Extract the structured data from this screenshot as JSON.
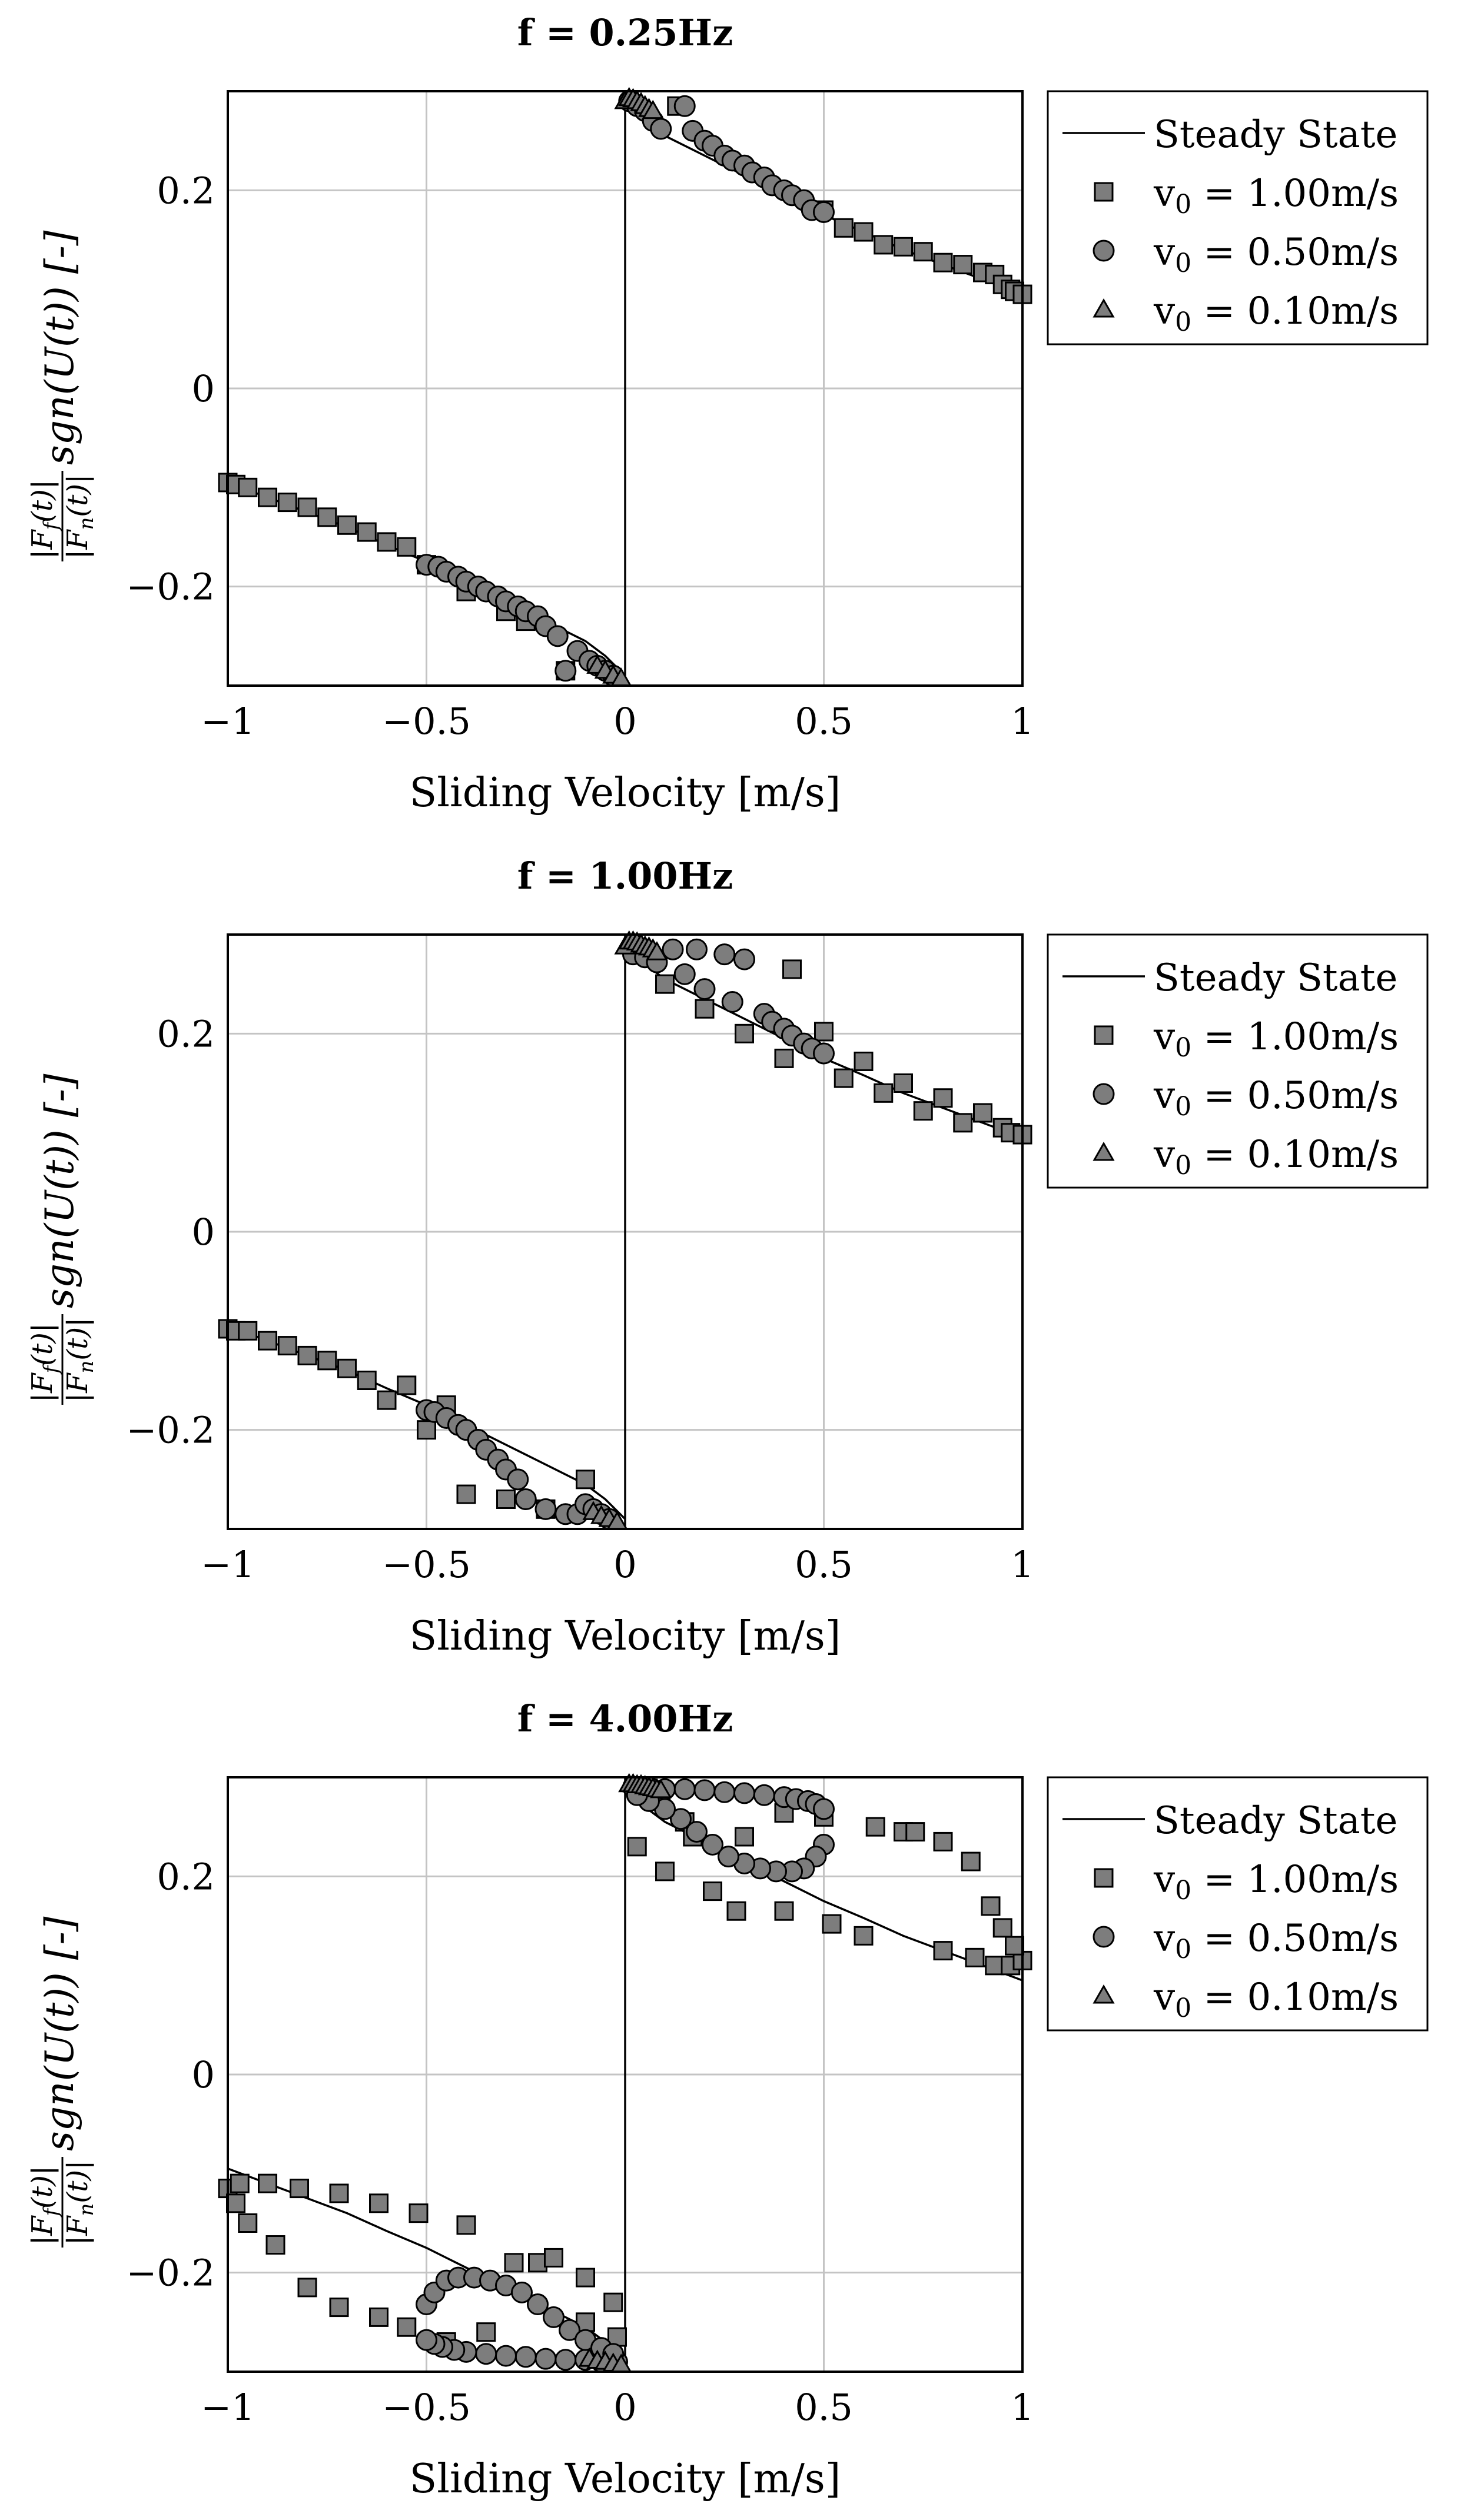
{
  "figure_label": "Normalized friction force vs sliding velocity",
  "chart_data": [
    {
      "type": "scatter",
      "title": "f = 0.25Hz",
      "xlabel": "Sliding Velocity [m/s]",
      "ylabel": "|F_f(t)| / |F_n(t)| sgn(U(t)) [-]",
      "ylabel_parts": {
        "num": "|F",
        "num_sub": "f",
        "num_arg": "(t)|",
        "den": "|F",
        "den_sub": "n",
        "den_arg": "(t)|",
        "rest": "sgn(U(t)) [-]"
      },
      "xlim": [
        -1,
        1
      ],
      "ylim": [
        -0.3,
        0.3
      ],
      "xticks": [
        -1,
        -0.5,
        0,
        0.5,
        1
      ],
      "xtick_labels": [
        "−1",
        "−0.5",
        "0",
        "0.5",
        "1"
      ],
      "yticks": [
        -0.2,
        0,
        0.2
      ],
      "ytick_labels": [
        "−0.2",
        "0",
        "0.2"
      ],
      "grid": true,
      "legend_position": "outside-right-top",
      "legend": [
        "Steady State",
        "v0 = 1.00m/s",
        "v0 = 0.50m/s",
        "v0 = 0.10m/s"
      ],
      "steady_state": {
        "name": "Steady State",
        "x": [
          0.0,
          0.05,
          0.1,
          0.2,
          0.3,
          0.4,
          0.5,
          0.6,
          0.7,
          0.8,
          0.9,
          1.0
        ],
        "y": [
          0.29,
          0.27,
          0.255,
          0.235,
          0.215,
          0.195,
          0.175,
          0.158,
          0.14,
          0.125,
          0.11,
          0.095
        ]
      },
      "series": [
        {
          "name": "v0 = 1.00m/s",
          "marker": "square",
          "x": [
            0.13,
            0.5,
            0.55,
            0.6,
            0.65,
            0.7,
            0.75,
            0.8,
            0.85,
            0.9,
            0.93,
            0.95,
            0.97,
            0.98,
            1.0,
            -1.0,
            -0.98,
            -0.95,
            -0.9,
            -0.85,
            -0.8,
            -0.75,
            -0.7,
            -0.65,
            -0.6,
            -0.55,
            -0.5,
            -0.4,
            -0.3,
            -0.25,
            -0.15
          ],
          "y": [
            0.285,
            0.18,
            0.162,
            0.158,
            0.145,
            0.143,
            0.138,
            0.127,
            0.125,
            0.117,
            0.115,
            0.105,
            0.1,
            0.098,
            0.095,
            -0.095,
            -0.097,
            -0.1,
            -0.11,
            -0.115,
            -0.12,
            -0.13,
            -0.138,
            -0.145,
            -0.155,
            -0.16,
            -0.178,
            -0.205,
            -0.225,
            -0.235,
            -0.285
          ]
        },
        {
          "name": "v0 = 0.50m/s",
          "marker": "circle",
          "x": [
            0.01,
            0.03,
            0.05,
            0.07,
            0.09,
            0.15,
            0.17,
            0.2,
            0.22,
            0.25,
            0.27,
            0.3,
            0.32,
            0.35,
            0.37,
            0.4,
            0.42,
            0.45,
            0.47,
            0.5,
            -0.5,
            -0.47,
            -0.45,
            -0.42,
            -0.4,
            -0.37,
            -0.35,
            -0.32,
            -0.3,
            -0.27,
            -0.25,
            -0.22,
            -0.2,
            -0.17,
            -0.15,
            -0.12,
            -0.09,
            -0.07,
            -0.05,
            -0.03
          ],
          "y": [
            0.29,
            0.285,
            0.28,
            0.27,
            0.262,
            0.285,
            0.26,
            0.25,
            0.245,
            0.235,
            0.23,
            0.225,
            0.218,
            0.213,
            0.205,
            0.2,
            0.195,
            0.19,
            0.18,
            0.178,
            -0.178,
            -0.18,
            -0.185,
            -0.19,
            -0.195,
            -0.2,
            -0.205,
            -0.21,
            -0.215,
            -0.22,
            -0.225,
            -0.23,
            -0.24,
            -0.25,
            -0.285,
            -0.265,
            -0.275,
            -0.28,
            -0.285,
            -0.29
          ]
        },
        {
          "name": "v0 = 0.10m/s",
          "marker": "triangle",
          "x": [
            0.0,
            0.01,
            0.02,
            0.03,
            0.04,
            0.05,
            0.06,
            0.07,
            -0.07,
            -0.05,
            -0.03,
            -0.01
          ],
          "y": [
            0.29,
            0.293,
            0.292,
            0.29,
            0.288,
            0.285,
            0.282,
            0.28,
            -0.28,
            -0.285,
            -0.29,
            -0.293
          ]
        }
      ]
    },
    {
      "type": "scatter",
      "title": "f = 1.00Hz",
      "xlabel": "Sliding Velocity [m/s]",
      "ylabel": "|F_f(t)| / |F_n(t)| sgn(U(t)) [-]",
      "ylabel_parts": {
        "num": "|F",
        "num_sub": "f",
        "num_arg": "(t)|",
        "den": "|F",
        "den_sub": "n",
        "den_arg": "(t)|",
        "rest": "sgn(U(t)) [-]"
      },
      "xlim": [
        -1,
        1
      ],
      "ylim": [
        -0.3,
        0.3
      ],
      "xticks": [
        -1,
        -0.5,
        0,
        0.5,
        1
      ],
      "xtick_labels": [
        "−1",
        "−0.5",
        "0",
        "0.5",
        "1"
      ],
      "yticks": [
        -0.2,
        0,
        0.2
      ],
      "ytick_labels": [
        "−0.2",
        "0",
        "0.2"
      ],
      "grid": true,
      "legend_position": "outside-right-top",
      "legend": [
        "Steady State",
        "v0 = 1.00m/s",
        "v0 = 0.50m/s",
        "v0 = 0.10m/s"
      ],
      "steady_state": {
        "name": "Steady State",
        "x": [
          0.0,
          0.05,
          0.1,
          0.2,
          0.3,
          0.4,
          0.5,
          0.6,
          0.7,
          0.8,
          0.9,
          1.0
        ],
        "y": [
          0.29,
          0.27,
          0.255,
          0.235,
          0.215,
          0.195,
          0.175,
          0.158,
          0.14,
          0.125,
          0.11,
          0.095
        ]
      },
      "series": [
        {
          "name": "v0 = 1.00m/s",
          "marker": "square",
          "x": [
            0.1,
            0.2,
            0.3,
            0.4,
            0.42,
            0.5,
            0.55,
            0.6,
            0.65,
            0.7,
            0.75,
            0.8,
            0.85,
            0.9,
            0.95,
            0.97,
            1.0,
            -1.0,
            -0.98,
            -0.95,
            -0.9,
            -0.85,
            -0.8,
            -0.75,
            -0.7,
            -0.65,
            -0.6,
            -0.55,
            -0.5,
            -0.45,
            -0.4,
            -0.3,
            -0.2,
            -0.1
          ],
          "y": [
            0.25,
            0.225,
            0.2,
            0.175,
            0.265,
            0.202,
            0.155,
            0.172,
            0.14,
            0.15,
            0.122,
            0.135,
            0.11,
            0.12,
            0.105,
            0.1,
            0.098,
            -0.098,
            -0.1,
            -0.1,
            -0.11,
            -0.115,
            -0.125,
            -0.13,
            -0.138,
            -0.15,
            -0.17,
            -0.155,
            -0.2,
            -0.175,
            -0.265,
            -0.27,
            -0.28,
            -0.25
          ]
        },
        {
          "name": "v0 = 0.50m/s",
          "marker": "circle",
          "x": [
            0.02,
            0.05,
            0.08,
            0.12,
            0.15,
            0.18,
            0.2,
            0.25,
            0.27,
            0.3,
            0.35,
            0.37,
            0.4,
            0.42,
            0.45,
            0.47,
            0.5,
            -0.5,
            -0.48,
            -0.45,
            -0.42,
            -0.4,
            -0.37,
            -0.35,
            -0.32,
            -0.3,
            -0.27,
            -0.25,
            -0.2,
            -0.15,
            -0.12,
            -0.1,
            -0.08,
            -0.06,
            -0.04
          ],
          "y": [
            0.28,
            0.277,
            0.272,
            0.285,
            0.26,
            0.285,
            0.245,
            0.28,
            0.232,
            0.275,
            0.22,
            0.212,
            0.205,
            0.198,
            0.19,
            0.185,
            0.18,
            -0.18,
            -0.182,
            -0.188,
            -0.195,
            -0.2,
            -0.21,
            -0.22,
            -0.23,
            -0.24,
            -0.25,
            -0.27,
            -0.28,
            -0.285,
            -0.285,
            -0.275,
            -0.28,
            -0.285,
            -0.29
          ]
        },
        {
          "name": "v0 = 0.10m/s",
          "marker": "triangle",
          "x": [
            0.0,
            0.01,
            0.02,
            0.03,
            0.04,
            0.05,
            0.06,
            0.07,
            0.08,
            -0.08,
            -0.06,
            -0.04,
            -0.02
          ],
          "y": [
            0.288,
            0.293,
            0.293,
            0.292,
            0.29,
            0.288,
            0.287,
            0.285,
            0.282,
            -0.283,
            -0.287,
            -0.29,
            -0.293
          ]
        }
      ]
    },
    {
      "type": "scatter",
      "title": "f = 4.00Hz",
      "xlabel": "Sliding Velocity [m/s]",
      "ylabel": "|F_f(t)| / |F_n(t)| sgn(U(t)) [-]",
      "ylabel_parts": {
        "num": "|F",
        "num_sub": "f",
        "num_arg": "(t)|",
        "den": "|F",
        "den_sub": "n",
        "den_arg": "(t)|",
        "rest": "sgn(U(t)) [-]"
      },
      "xlim": [
        -1,
        1
      ],
      "ylim": [
        -0.3,
        0.3
      ],
      "xticks": [
        -1,
        -0.5,
        0,
        0.5,
        1
      ],
      "xtick_labels": [
        "−1",
        "−0.5",
        "0",
        "0.5",
        "1"
      ],
      "yticks": [
        -0.2,
        0,
        0.2
      ],
      "ytick_labels": [
        "−0.2",
        "0",
        "0.2"
      ],
      "grid": true,
      "legend_position": "outside-right-top",
      "legend": [
        "Steady State",
        "v0 = 1.00m/s",
        "v0 = 0.50m/s",
        "v0 = 0.10m/s"
      ],
      "steady_state": {
        "name": "Steady State",
        "x": [
          0.0,
          0.05,
          0.1,
          0.2,
          0.3,
          0.4,
          0.5,
          0.6,
          0.7,
          0.8,
          0.9,
          1.0
        ],
        "y": [
          0.29,
          0.27,
          0.255,
          0.235,
          0.215,
          0.195,
          0.175,
          0.158,
          0.14,
          0.125,
          0.11,
          0.095
        ]
      },
      "series": [
        {
          "name": "v0 = 1.00m/s",
          "marker": "square",
          "x": [
            0.03,
            0.1,
            0.15,
            0.22,
            0.3,
            0.4,
            0.5,
            0.6,
            0.7,
            0.8,
            0.88,
            0.93,
            0.97,
            1.0,
            0.98,
            0.95,
            0.92,
            0.87,
            0.8,
            0.73,
            0.63,
            0.52,
            0.4,
            0.28,
            0.17,
            0.09,
            -1.0,
            -0.98,
            -0.95,
            -0.88,
            -0.8,
            -0.72,
            -0.62,
            -0.55,
            -0.45,
            -0.35,
            -0.22,
            -0.1,
            -0.03,
            -0.02,
            -0.1,
            -0.18,
            -0.28,
            -0.4,
            -0.52,
            -0.62,
            -0.72,
            -0.82,
            -0.9,
            -0.97
          ],
          "y": [
            0.23,
            0.205,
            0.255,
            0.185,
            0.24,
            0.165,
            0.26,
            0.14,
            0.245,
            0.125,
            0.118,
            0.11,
            0.11,
            0.115,
            0.13,
            0.148,
            0.17,
            0.215,
            0.235,
            0.245,
            0.25,
            0.152,
            0.264,
            0.165,
            0.24,
            0.28,
            -0.115,
            -0.13,
            -0.15,
            -0.172,
            -0.215,
            -0.235,
            -0.245,
            -0.255,
            -0.27,
            -0.26,
            -0.19,
            -0.205,
            -0.23,
            -0.265,
            -0.25,
            -0.185,
            -0.19,
            -0.152,
            -0.14,
            -0.13,
            -0.12,
            -0.115,
            -0.11,
            -0.11
          ]
        },
        {
          "name": "v0 = 0.50m/s",
          "marker": "circle",
          "x": [
            0.02,
            0.06,
            0.1,
            0.15,
            0.2,
            0.25,
            0.3,
            0.35,
            0.4,
            0.43,
            0.46,
            0.48,
            0.5,
            0.5,
            0.48,
            0.45,
            0.42,
            0.38,
            0.34,
            0.3,
            0.26,
            0.22,
            0.18,
            0.14,
            0.1,
            0.06,
            0.03,
            -0.02,
            -0.06,
            -0.1,
            -0.15,
            -0.2,
            -0.25,
            -0.3,
            -0.35,
            -0.4,
            -0.43,
            -0.46,
            -0.48,
            -0.5,
            -0.5,
            -0.48,
            -0.45,
            -0.42,
            -0.38,
            -0.34,
            -0.3,
            -0.26,
            -0.22,
            -0.18,
            -0.14,
            -0.1,
            -0.06,
            -0.03
          ],
          "y": [
            0.29,
            0.29,
            0.288,
            0.288,
            0.287,
            0.285,
            0.284,
            0.282,
            0.28,
            0.278,
            0.276,
            0.273,
            0.268,
            0.232,
            0.22,
            0.208,
            0.205,
            0.205,
            0.208,
            0.213,
            0.22,
            0.232,
            0.245,
            0.258,
            0.268,
            0.276,
            0.282,
            -0.29,
            -0.29,
            -0.288,
            -0.288,
            -0.287,
            -0.285,
            -0.284,
            -0.282,
            -0.28,
            -0.278,
            -0.275,
            -0.272,
            -0.268,
            -0.232,
            -0.22,
            -0.208,
            -0.205,
            -0.205,
            -0.208,
            -0.213,
            -0.22,
            -0.232,
            -0.245,
            -0.258,
            -0.268,
            -0.276,
            -0.282
          ]
        },
        {
          "name": "v0 = 0.10m/s",
          "marker": "triangle",
          "x": [
            0.01,
            0.02,
            0.03,
            0.04,
            0.05,
            0.06,
            0.07,
            0.08,
            0.09,
            -0.09,
            -0.07,
            -0.05,
            -0.03,
            -0.01
          ],
          "y": [
            0.293,
            0.293,
            0.292,
            0.292,
            0.291,
            0.29,
            0.289,
            0.288,
            0.287,
            -0.287,
            -0.289,
            -0.29,
            -0.292,
            -0.293
          ]
        }
      ]
    }
  ]
}
